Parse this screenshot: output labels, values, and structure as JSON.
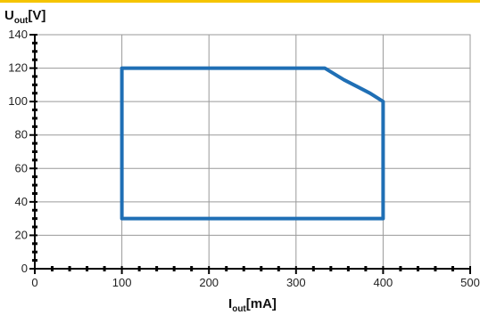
{
  "colors": {
    "top_rule": "#f5c400",
    "grid": "#9a9a9a",
    "axis": "#000000",
    "series": "#1f6fb5",
    "plot_border": "#9a9a9a"
  },
  "chart_data": {
    "type": "line",
    "grid": true,
    "xlim": [
      0,
      500
    ],
    "ylim": [
      0,
      140
    ],
    "x_ticks": [
      0,
      100,
      200,
      300,
      400,
      500
    ],
    "y_ticks": [
      0,
      20,
      40,
      60,
      80,
      100,
      120,
      140
    ],
    "x_tick_labels": [
      "0",
      "100",
      "200",
      "300",
      "400",
      "500"
    ],
    "y_tick_labels": [
      "0",
      "20",
      "40",
      "60",
      "80",
      "100",
      "120",
      "140"
    ],
    "xlabel": {
      "main": "I",
      "sub": "out",
      "unit": "[mA]"
    },
    "ylabel": {
      "main": "U",
      "sub": "out",
      "unit": "[V]"
    },
    "series": [
      {
        "points": [
          [
            100,
            30
          ],
          [
            100,
            120
          ],
          [
            333,
            120
          ],
          [
            355,
            113
          ],
          [
            370,
            109
          ],
          [
            385,
            105
          ],
          [
            400,
            100
          ],
          [
            400,
            30
          ],
          [
            100,
            30
          ]
        ]
      }
    ]
  }
}
